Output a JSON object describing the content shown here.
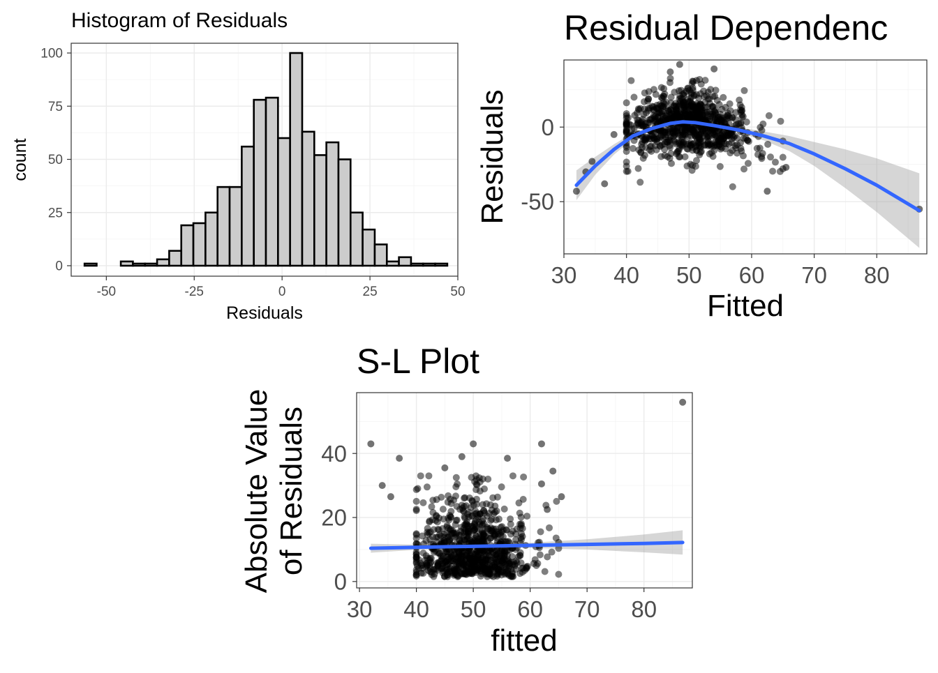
{
  "chart_data": [
    {
      "id": "hist",
      "type": "bar",
      "title": "Histogram of Residuals",
      "xlabel": "Residuals",
      "ylabel": "count",
      "xlim": [
        -60,
        50
      ],
      "ylim": [
        0,
        100
      ],
      "x_ticks": [
        -50,
        -25,
        0,
        25,
        50
      ],
      "x_tick_labels": [
        "-50",
        "-25",
        "0",
        "25",
        "50"
      ],
      "y_ticks": [
        0,
        25,
        50,
        75,
        100
      ],
      "y_tick_labels": [
        "0",
        "25",
        "50",
        "75",
        "100"
      ],
      "bin_width": 3.44,
      "bin_start": -56.2,
      "values": [
        1,
        0,
        0,
        2,
        1,
        1,
        3,
        7,
        19,
        20,
        25,
        37,
        37,
        56,
        78,
        79,
        60,
        100,
        63,
        52,
        58,
        50,
        25,
        17,
        10,
        2,
        4,
        1,
        1,
        1
      ],
      "fill": "#cccccc",
      "stroke": "#000000",
      "grid": true
    },
    {
      "id": "resid",
      "type": "scatter",
      "title": "Residual Dependenc",
      "xlabel": "Fitted",
      "ylabel": "Residuals",
      "xlim": [
        30,
        88
      ],
      "ylim": [
        -85,
        45
      ],
      "x_ticks": [
        30,
        40,
        50,
        60,
        70,
        80
      ],
      "x_tick_labels": [
        "30",
        "40",
        "50",
        "60",
        "70",
        "80"
      ],
      "y_ticks": [
        -50,
        0
      ],
      "y_tick_labels": [
        "-50",
        "0"
      ],
      "cloud": {
        "n": 850,
        "x_mean": 50,
        "x_sd": 5.2,
        "y_sd": 11
      },
      "outliers": [
        {
          "x": 32,
          "y": -43
        },
        {
          "x": 33.5,
          "y": -30
        },
        {
          "x": 36.5,
          "y": -38
        },
        {
          "x": 34.5,
          "y": -23
        },
        {
          "x": 38,
          "y": -5
        },
        {
          "x": 62.5,
          "y": -43
        },
        {
          "x": 65.5,
          "y": -27
        },
        {
          "x": 86.8,
          "y": -55
        },
        {
          "x": 48.5,
          "y": 42
        },
        {
          "x": 54,
          "y": 39
        },
        {
          "x": 47,
          "y": 37
        }
      ],
      "smooth": {
        "x": [
          32,
          35,
          38,
          41,
          44,
          47,
          49,
          51,
          54,
          58,
          62,
          66,
          70,
          75,
          80,
          86.8
        ],
        "y": [
          -39,
          -26,
          -15,
          -6,
          -1,
          2.5,
          3.5,
          3,
          1,
          -2,
          -6,
          -11,
          -18,
          -28,
          -39,
          -56
        ],
        "se": [
          10,
          6,
          3.5,
          2,
          1.2,
          1,
          1,
          1,
          1.2,
          1.8,
          3,
          5,
          8,
          13,
          18,
          25
        ],
        "color": "#3366ff"
      },
      "point_color": "#000000",
      "grid": true
    },
    {
      "id": "sl",
      "type": "scatter",
      "title": "S-L Plot",
      "xlabel": "fitted",
      "ylabel": [
        "Absolute Value",
        "of Residuals"
      ],
      "xlim": [
        29.5,
        88.5
      ],
      "ylim": [
        -2,
        59
      ],
      "x_ticks": [
        30,
        40,
        50,
        60,
        70,
        80
      ],
      "x_tick_labels": [
        "30",
        "40",
        "50",
        "60",
        "70",
        "80"
      ],
      "y_ticks": [
        0,
        20,
        40
      ],
      "y_tick_labels": [
        "0",
        "20",
        "40"
      ],
      "cloud": {
        "n": 850,
        "x_mean": 50,
        "x_sd": 5.2,
        "y_sd": 11
      },
      "outliers": [
        {
          "x": 32,
          "y": 43
        },
        {
          "x": 86.8,
          "y": 56
        },
        {
          "x": 50,
          "y": 43
        },
        {
          "x": 62,
          "y": 43
        },
        {
          "x": 37,
          "y": 38.5
        },
        {
          "x": 56,
          "y": 38.5
        },
        {
          "x": 34,
          "y": 30
        },
        {
          "x": 35.5,
          "y": 26.5
        },
        {
          "x": 64,
          "y": 34.5
        },
        {
          "x": 65.5,
          "y": 26.5
        },
        {
          "x": 63,
          "y": 22.5
        },
        {
          "x": 62,
          "y": 30.5
        },
        {
          "x": 45,
          "y": 35.5
        },
        {
          "x": 48,
          "y": 39
        }
      ],
      "smooth": {
        "x": [
          32,
          40,
          50,
          60,
          70,
          80,
          86.8
        ],
        "y": [
          10.4,
          10.7,
          11.0,
          11.3,
          11.6,
          11.9,
          12.2
        ],
        "se": [
          1.4,
          0.8,
          0.5,
          0.8,
          1.6,
          2.8,
          3.8
        ],
        "color": "#3366ff"
      },
      "point_color": "#000000",
      "grid": true
    }
  ]
}
